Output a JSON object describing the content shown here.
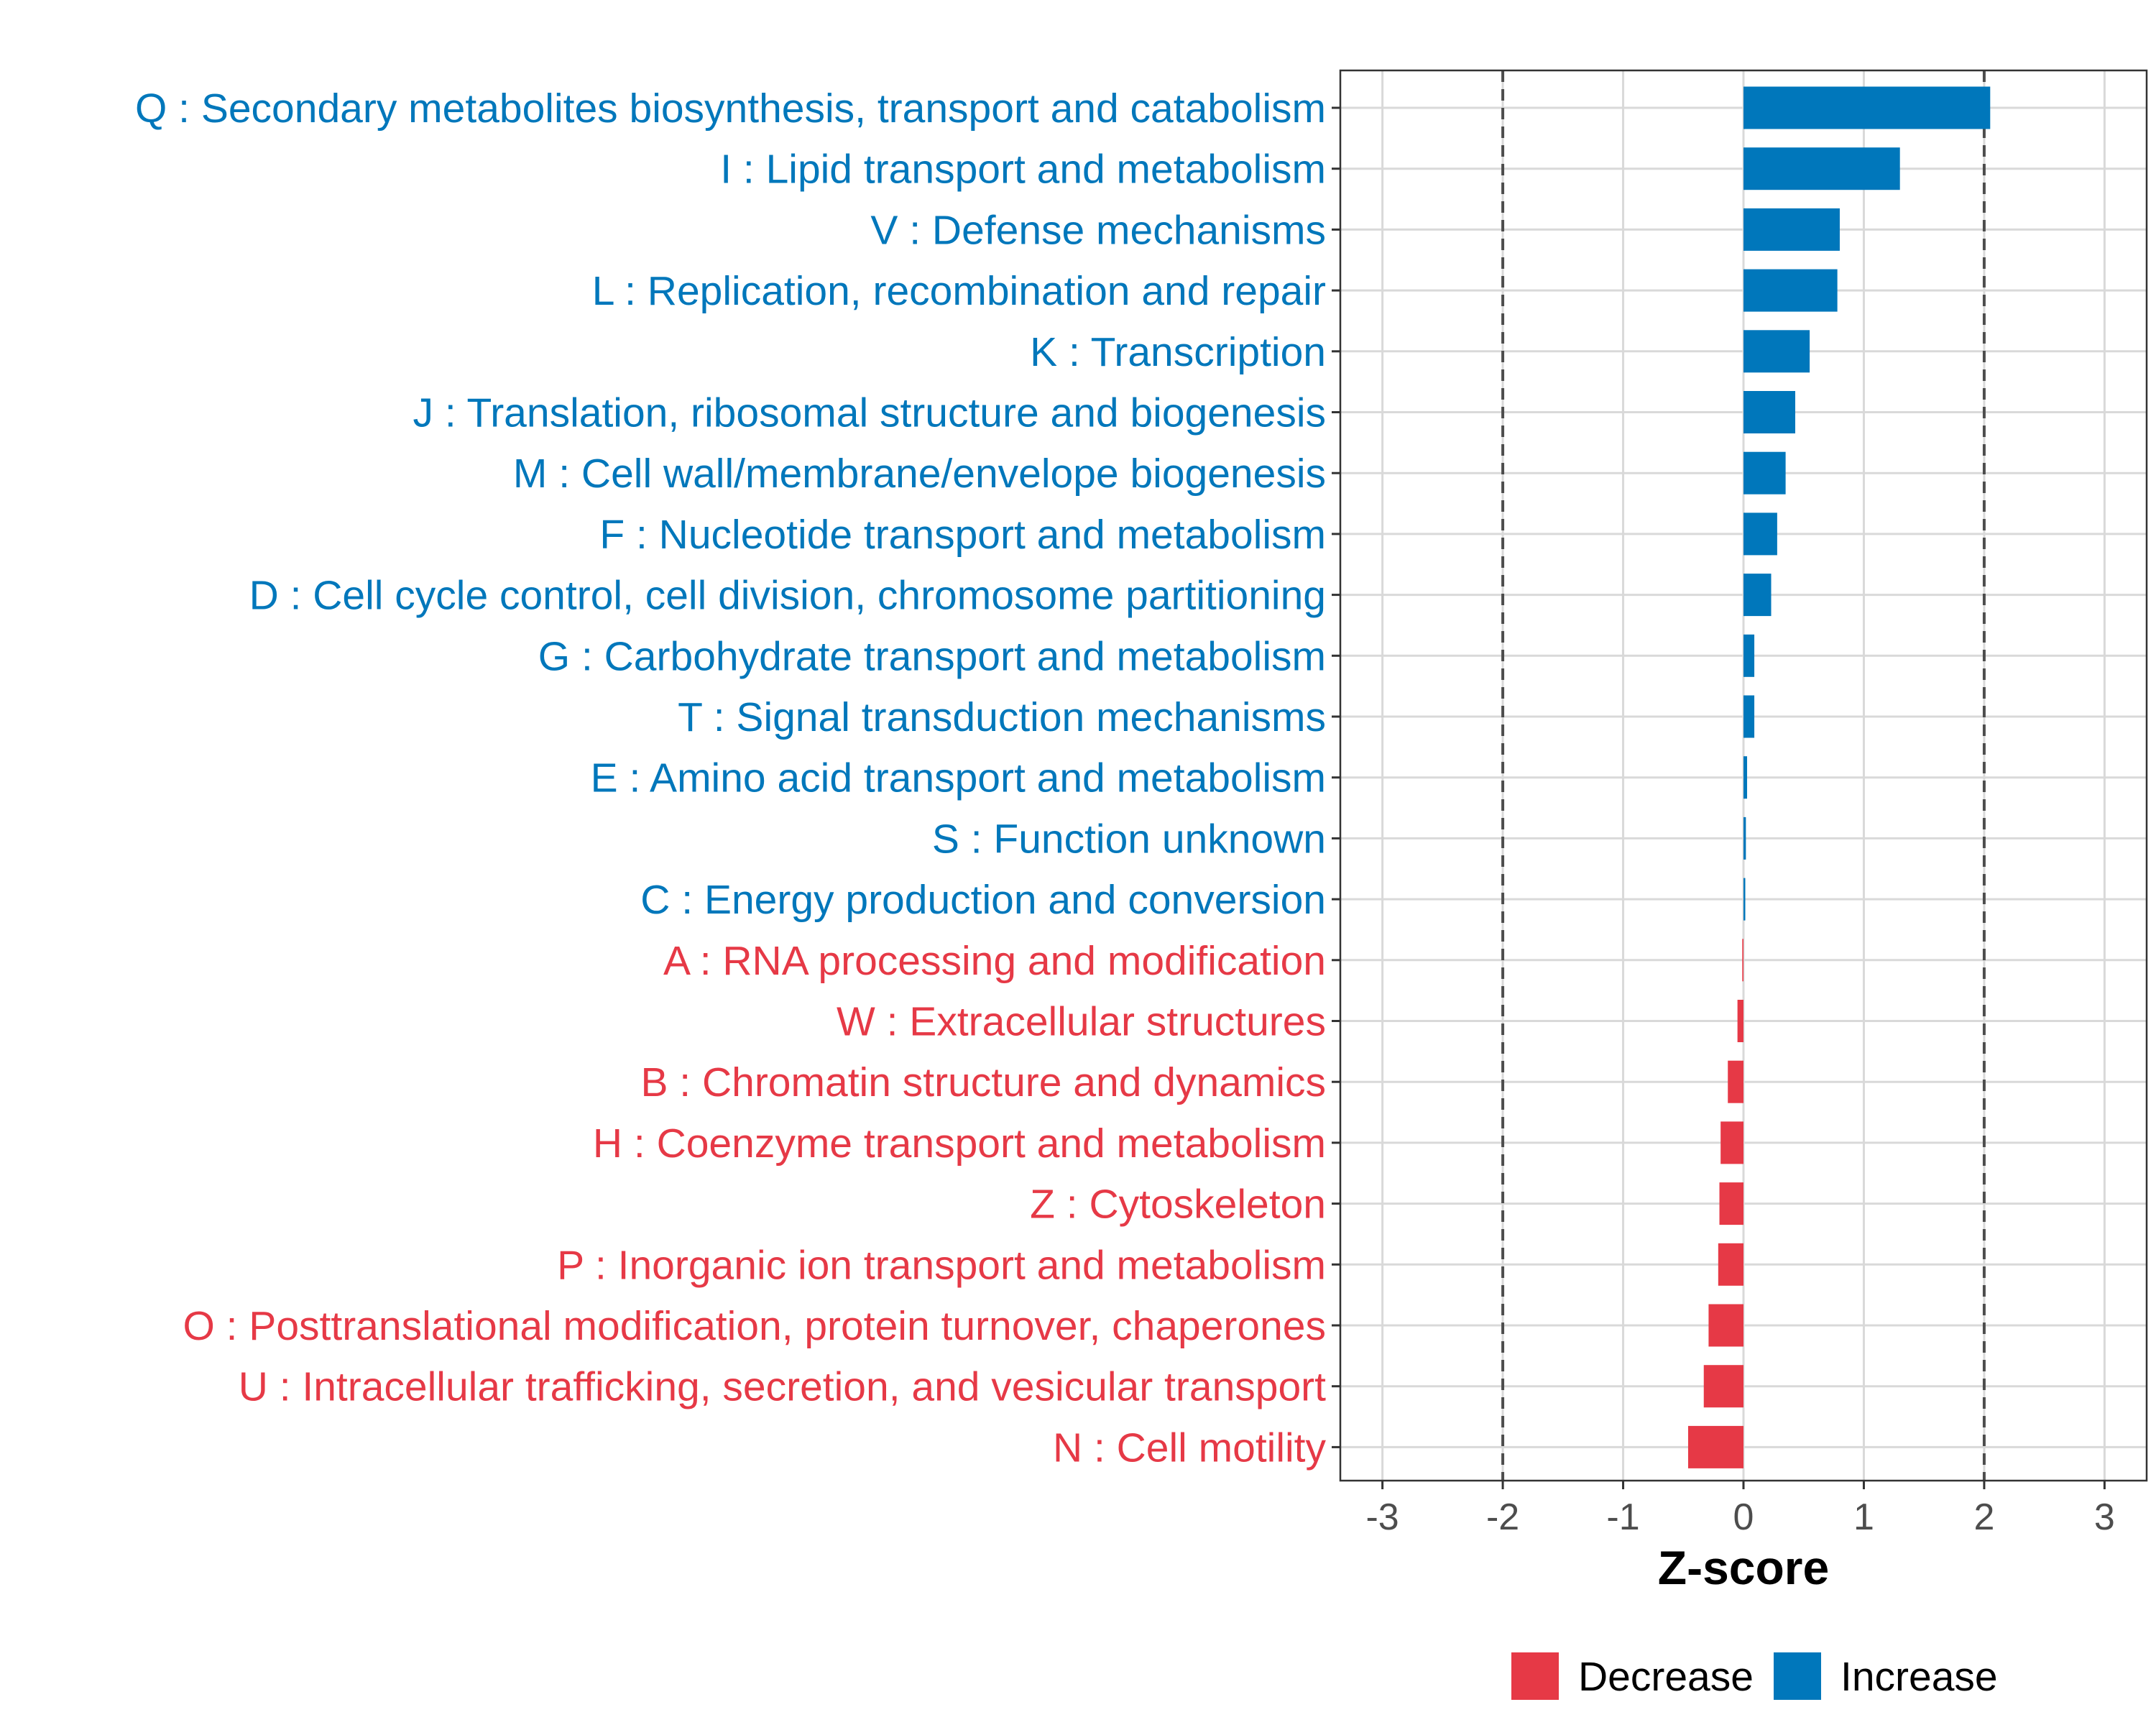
{
  "chart_data": {
    "type": "bar",
    "orientation": "horizontal",
    "title": "",
    "xlabel": "Z-score",
    "ylabel": "",
    "xlim": [
      -3.35,
      3.35
    ],
    "xticks": [
      -3,
      -2,
      -1,
      0,
      1,
      2,
      3
    ],
    "tick_labels": [
      "-3",
      "-2",
      "-1",
      "0",
      "1",
      "2",
      "3"
    ],
    "reference_lines": [
      -2,
      2
    ],
    "grid": true,
    "legend_position": "bottom",
    "colors": {
      "Increase": "#0077bb",
      "Decrease": "#e63946",
      "reference": "#4d4d4d",
      "grid": "#d9d9d9"
    },
    "categories": [
      "Q : Secondary metabolites biosynthesis, transport and catabolism",
      "I : Lipid transport and metabolism",
      "V : Defense mechanisms",
      "L : Replication, recombination and repair",
      "K : Transcription",
      "J : Translation, ribosomal structure and biogenesis",
      "M : Cell wall/membrane/envelope biogenesis",
      "F : Nucleotide transport and metabolism",
      "D : Cell cycle control, cell division, chromosome partitioning",
      "G : Carbohydrate transport and metabolism",
      "T : Signal transduction mechanisms",
      "E : Amino acid transport and metabolism",
      "S : Function unknown",
      "C : Energy production and conversion",
      "A : RNA processing and modification",
      "W : Extracellular structures",
      "B : Chromatin structure and dynamics",
      "H : Coenzyme transport and metabolism",
      "Z : Cytoskeleton",
      "P : Inorganic ion transport and metabolism",
      "O : Posttranslational modification, protein turnover, chaperones",
      "U : Intracellular trafficking, secretion, and vesicular transport",
      "N : Cell motility"
    ],
    "values": [
      2.05,
      1.3,
      0.8,
      0.78,
      0.55,
      0.43,
      0.35,
      0.28,
      0.23,
      0.09,
      0.09,
      0.03,
      0.02,
      0.015,
      -0.01,
      -0.05,
      -0.13,
      -0.19,
      -0.2,
      -0.21,
      -0.29,
      -0.33,
      -0.46
    ],
    "groups": [
      "Increase",
      "Increase",
      "Increase",
      "Increase",
      "Increase",
      "Increase",
      "Increase",
      "Increase",
      "Increase",
      "Increase",
      "Increase",
      "Increase",
      "Increase",
      "Increase",
      "Decrease",
      "Decrease",
      "Decrease",
      "Decrease",
      "Decrease",
      "Decrease",
      "Decrease",
      "Decrease",
      "Decrease"
    ],
    "legend": [
      {
        "name": "Decrease",
        "color": "#e63946"
      },
      {
        "name": "Increase",
        "color": "#0077bb"
      }
    ]
  }
}
